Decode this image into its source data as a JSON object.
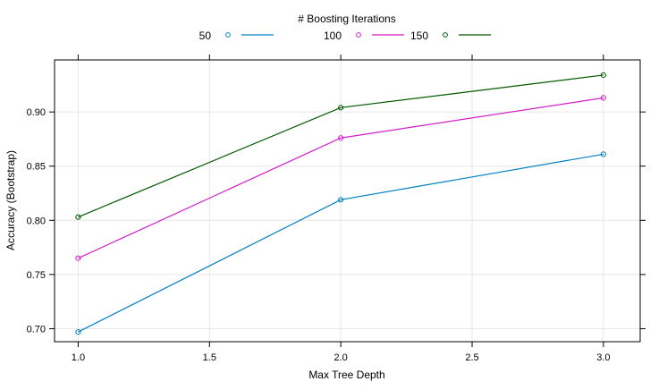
{
  "chart_data": {
    "type": "line",
    "title": "",
    "legend": {
      "title": "# Boosting Iterations",
      "placement": "top"
    },
    "xlabel": "Max Tree Depth",
    "ylabel": "Accuracy (Bootstrap)",
    "x": [
      1.0,
      2.0,
      3.0
    ],
    "xticks": [
      "1.0",
      "1.5",
      "2.0",
      "2.5",
      "3.0"
    ],
    "xtick_values": [
      1.0,
      1.5,
      2.0,
      2.5,
      3.0
    ],
    "yticks": [
      "0.70",
      "0.75",
      "0.80",
      "0.85",
      "0.90"
    ],
    "ytick_values": [
      0.7,
      0.75,
      0.8,
      0.85,
      0.9
    ],
    "xlim": [
      0.91,
      3.14
    ],
    "ylim": [
      0.688,
      0.948
    ],
    "grid": true,
    "series": [
      {
        "name": "50",
        "color": "#0080c0",
        "values": [
          0.697,
          0.819,
          0.861
        ]
      },
      {
        "name": "100",
        "color": "#d21fc8",
        "values": [
          0.765,
          0.876,
          0.913
        ]
      },
      {
        "name": "150",
        "color": "#005a00",
        "values": [
          0.803,
          0.904,
          0.934
        ]
      }
    ]
  }
}
